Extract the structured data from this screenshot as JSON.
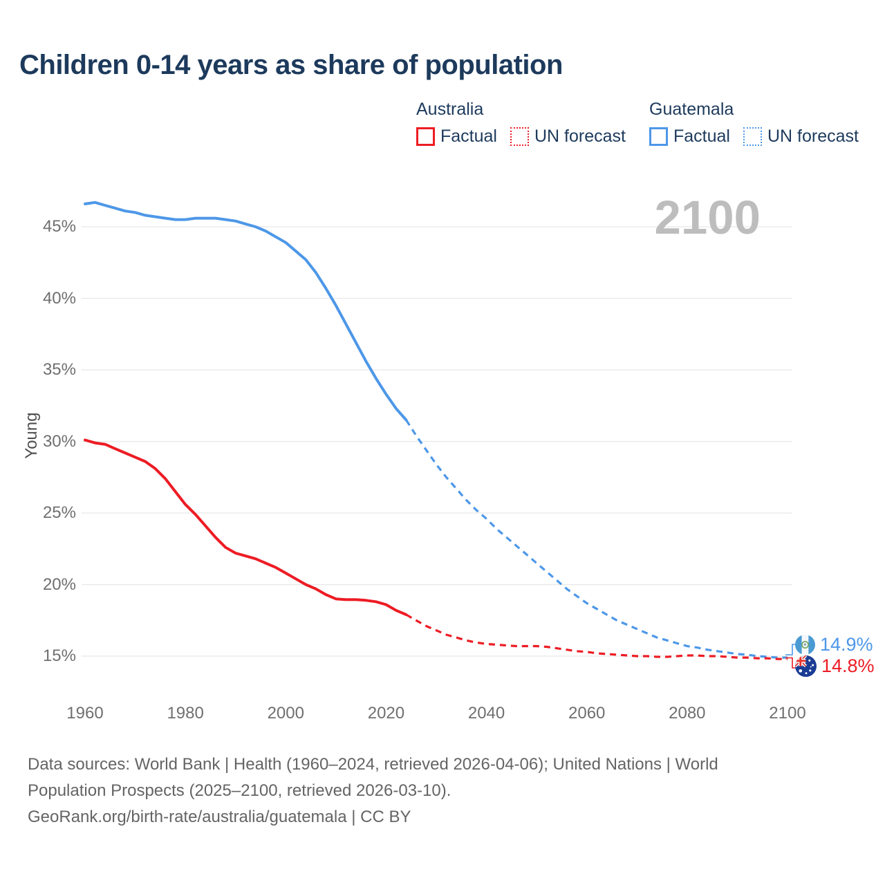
{
  "title": "Children 0-14 years as share of population",
  "legend": {
    "groups": [
      {
        "country": "Australia",
        "factual_label": "Factual",
        "forecast_label": "UN forecast",
        "color": "#ed1c24"
      },
      {
        "country": "Guatemala",
        "factual_label": "Factual",
        "forecast_label": "UN forecast",
        "color": "#4d97e8"
      }
    ]
  },
  "end_labels": [
    {
      "country": "Guatemala",
      "label": "14.9%",
      "value": 14.9,
      "color": "#4d97e8",
      "flag": "guatemala-flag"
    },
    {
      "country": "Australia",
      "label": "14.8%",
      "value": 14.8,
      "color": "#ed1c24",
      "flag": "australia-flag"
    }
  ],
  "footer": {
    "sources": "Data sources: World Bank | Health (1960–2024, retrieved 2026-04-06); United Nations | World Population Prospects (2025–2100, retrieved 2026-03-10).",
    "attribution": "GeoRank.org/birth-rate/australia/guatemala | CC BY"
  },
  "chart_data": {
    "type": "line",
    "title": "Children 0-14 years as share of population",
    "xlabel": "",
    "ylabel": "Young",
    "watermark": "2100",
    "xlim": [
      1960,
      2100
    ],
    "ylim": [
      14,
      47.5
    ],
    "grid": "horizontal",
    "legend_position": "top-right",
    "y_tick_values": [
      15,
      20,
      25,
      30,
      35,
      40,
      45
    ],
    "y_tick_labels": [
      "15%",
      "20%",
      "25%",
      "30%",
      "35%",
      "40%",
      "45%"
    ],
    "x_tick_values": [
      1960,
      1980,
      2000,
      2020,
      2040,
      2060,
      2080,
      2100
    ],
    "x_tick_labels": [
      "1960",
      "1980",
      "2000",
      "2020",
      "2040",
      "2060",
      "2080",
      "2100"
    ],
    "series": [
      {
        "name": "Guatemala — Factual",
        "key": "guatemala-factual",
        "style": "solid",
        "color": "#4d97e8",
        "x": [
          1960,
          1962,
          1964,
          1966,
          1968,
          1970,
          1972,
          1974,
          1976,
          1978,
          1980,
          1982,
          1984,
          1986,
          1988,
          1990,
          1992,
          1994,
          1996,
          1998,
          2000,
          2002,
          2004,
          2006,
          2008,
          2010,
          2012,
          2014,
          2016,
          2018,
          2020,
          2022,
          2024
        ],
        "values": [
          46.6,
          46.7,
          46.5,
          46.3,
          46.1,
          46.0,
          45.8,
          45.7,
          45.6,
          45.5,
          45.5,
          45.6,
          45.6,
          45.6,
          45.5,
          45.4,
          45.2,
          45.0,
          44.7,
          44.3,
          43.9,
          43.3,
          42.7,
          41.8,
          40.7,
          39.5,
          38.2,
          36.9,
          35.6,
          34.4,
          33.3,
          32.3,
          31.5
        ]
      },
      {
        "name": "Guatemala — UN forecast",
        "key": "guatemala-forecast",
        "style": "dashed",
        "color": "#4d97e8",
        "x": [
          2024,
          2026,
          2028,
          2030,
          2032,
          2034,
          2036,
          2038,
          2040,
          2042,
          2044,
          2046,
          2048,
          2050,
          2052,
          2054,
          2056,
          2058,
          2060,
          2062,
          2064,
          2066,
          2068,
          2070,
          2072,
          2074,
          2076,
          2078,
          2080,
          2082,
          2084,
          2086,
          2088,
          2090,
          2092,
          2094,
          2096,
          2098,
          2100
        ],
        "values": [
          31.5,
          30.4,
          29.4,
          28.4,
          27.5,
          26.7,
          25.9,
          25.2,
          24.6,
          23.9,
          23.3,
          22.7,
          22.1,
          21.5,
          20.9,
          20.3,
          19.7,
          19.2,
          18.7,
          18.3,
          17.9,
          17.5,
          17.2,
          16.9,
          16.6,
          16.3,
          16.1,
          15.9,
          15.7,
          15.6,
          15.45,
          15.35,
          15.25,
          15.15,
          15.1,
          15.0,
          14.95,
          14.9,
          14.9
        ]
      },
      {
        "name": "Australia — Factual",
        "key": "australia-factual",
        "style": "solid",
        "color": "#ed1c24",
        "x": [
          1960,
          1962,
          1964,
          1966,
          1968,
          1970,
          1972,
          1974,
          1976,
          1978,
          1980,
          1982,
          1984,
          1986,
          1988,
          1990,
          1992,
          1994,
          1996,
          1998,
          2000,
          2002,
          2004,
          2006,
          2008,
          2010,
          2012,
          2014,
          2016,
          2018,
          2020,
          2022,
          2024
        ],
        "values": [
          30.1,
          29.9,
          29.8,
          29.5,
          29.2,
          28.9,
          28.6,
          28.1,
          27.4,
          26.5,
          25.6,
          24.9,
          24.1,
          23.3,
          22.6,
          22.2,
          22.0,
          21.8,
          21.5,
          21.2,
          20.8,
          20.4,
          20.0,
          19.7,
          19.3,
          19.0,
          18.95,
          18.95,
          18.9,
          18.8,
          18.6,
          18.2,
          17.9
        ]
      },
      {
        "name": "Australia — UN forecast",
        "key": "australia-forecast",
        "style": "dashed",
        "color": "#ed1c24",
        "x": [
          2024,
          2026,
          2028,
          2030,
          2032,
          2034,
          2036,
          2038,
          2040,
          2042,
          2044,
          2046,
          2048,
          2050,
          2052,
          2054,
          2056,
          2058,
          2060,
          2062,
          2064,
          2066,
          2068,
          2070,
          2072,
          2074,
          2076,
          2078,
          2080,
          2082,
          2084,
          2086,
          2088,
          2090,
          2092,
          2094,
          2096,
          2098,
          2100
        ],
        "values": [
          17.9,
          17.5,
          17.1,
          16.8,
          16.5,
          16.3,
          16.1,
          15.95,
          15.85,
          15.8,
          15.75,
          15.7,
          15.7,
          15.7,
          15.65,
          15.55,
          15.45,
          15.35,
          15.3,
          15.2,
          15.15,
          15.1,
          15.05,
          15.0,
          15.0,
          14.95,
          14.95,
          15.0,
          15.05,
          15.05,
          15.0,
          15.0,
          14.95,
          14.9,
          14.9,
          14.85,
          14.85,
          14.8,
          14.8
        ]
      }
    ],
    "end_annotations": [
      {
        "series": "Guatemala",
        "year": 2100,
        "value": 14.9,
        "label": "14.9%"
      },
      {
        "series": "Australia",
        "year": 2100,
        "value": 14.8,
        "label": "14.8%"
      }
    ]
  }
}
